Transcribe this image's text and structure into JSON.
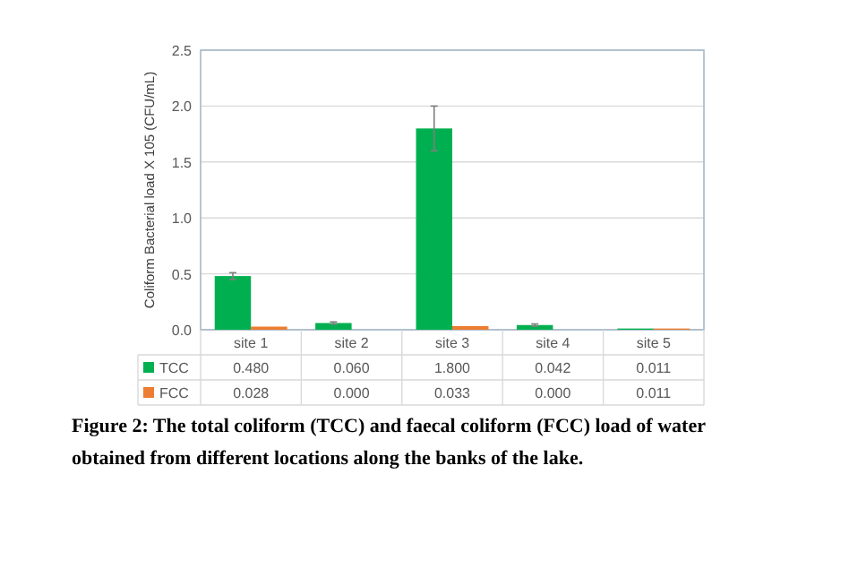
{
  "chart_data": {
    "type": "bar",
    "categories": [
      "site 1",
      "site 2",
      "site 3",
      "site 4",
      "site 5"
    ],
    "ylabel": "Coliform Bacterial load X 105 (CFU/mL)",
    "ylim": [
      0,
      2.5
    ],
    "yticks": [
      {
        "value": 0,
        "label": "0.0"
      },
      {
        "value": 0.5,
        "label": "0.5"
      },
      {
        "value": 1,
        "label": "1.0"
      },
      {
        "value": 1.5,
        "label": "1.5"
      },
      {
        "value": 2,
        "label": "2.0"
      },
      {
        "value": 2.5,
        "label": "2.5"
      }
    ],
    "grid": "y",
    "legend": "bottom",
    "series": [
      {
        "name": "TCC",
        "color": "#00b050",
        "values": [
          0.48,
          0.06,
          1.8,
          0.042,
          0.011
        ],
        "errors": [
          0.03,
          0.01,
          0.2,
          0.01,
          null
        ],
        "value_labels": [
          "0.480",
          "0.060",
          "1.800",
          "0.042",
          "0.011"
        ]
      },
      {
        "name": "FCC",
        "color": "#ed7d31",
        "values": [
          0.028,
          0,
          0.033,
          0,
          0.011
        ],
        "value_labels": [
          "0.028",
          "0.000",
          "0.033",
          "0.000",
          "0.011"
        ]
      }
    ],
    "annotations": [
      "Figure 2: The total coliform (TCC) and faecal coliform (FCC) load of water obtained from different locations along the banks of the lake."
    ]
  }
}
